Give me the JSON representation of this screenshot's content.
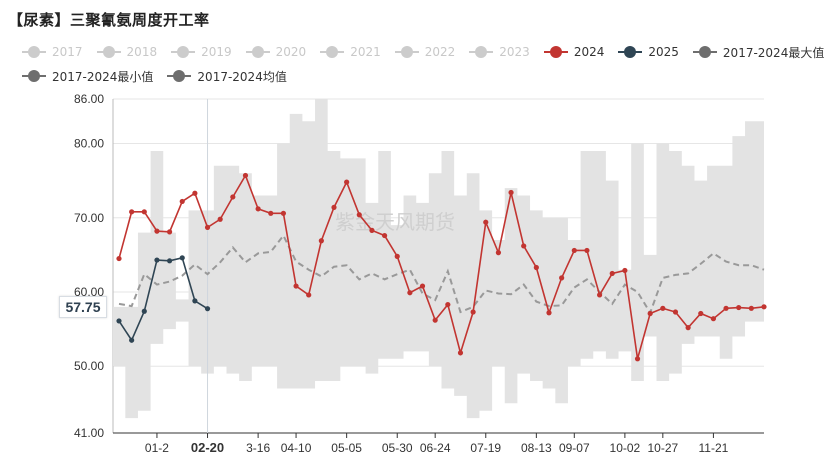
{
  "title": "【尿素】三聚氰氨周度开工率",
  "legend": [
    {
      "label": "2017",
      "color": "#cccccc",
      "active": false,
      "marker": "dot"
    },
    {
      "label": "2018",
      "color": "#cccccc",
      "active": false,
      "marker": "dot"
    },
    {
      "label": "2019",
      "color": "#cccccc",
      "active": false,
      "marker": "dot"
    },
    {
      "label": "2020",
      "color": "#cccccc",
      "active": false,
      "marker": "dot"
    },
    {
      "label": "2021",
      "color": "#cccccc",
      "active": false,
      "marker": "dot"
    },
    {
      "label": "2022",
      "color": "#cccccc",
      "active": false,
      "marker": "dot"
    },
    {
      "label": "2023",
      "color": "#cccccc",
      "active": false,
      "marker": "dot"
    },
    {
      "label": "2024",
      "color": "#c23531",
      "active": true,
      "marker": "dot"
    },
    {
      "label": "2025",
      "color": "#2f4554",
      "active": true,
      "marker": "dot"
    },
    {
      "label": "2017-2024最大值",
      "color": "#6e6e6e",
      "active": true,
      "marker": "dot"
    },
    {
      "label": "2017-2024最小值",
      "color": "#6e6e6e",
      "active": true,
      "marker": "dot"
    },
    {
      "label": "2017-2024均值",
      "color": "#6e6e6e",
      "active": true,
      "marker": "dot"
    }
  ],
  "watermark": "紫金天风期货",
  "pointer_label": "57.75",
  "chart_data": {
    "type": "line",
    "ylim": [
      41.0,
      86.0
    ],
    "y_ticks": [
      "41.00",
      "50.00",
      "60.00",
      "70.00",
      "80.00",
      "86.00"
    ],
    "y_tick_values": [
      41,
      50,
      60,
      70,
      80,
      86
    ],
    "x_count": 52,
    "x_ticks": [
      {
        "index": 3,
        "label": "01-2"
      },
      {
        "index": 7,
        "label": "02-20"
      },
      {
        "index": 11,
        "label": "3-16"
      },
      {
        "index": 14,
        "label": "04-10"
      },
      {
        "index": 18,
        "label": "05-05"
      },
      {
        "index": 22,
        "label": "05-30"
      },
      {
        "index": 25,
        "label": "06-24"
      },
      {
        "index": 29,
        "label": "07-19"
      },
      {
        "index": 33,
        "label": "08-13"
      },
      {
        "index": 36,
        "label": "09-07"
      },
      {
        "index": 40,
        "label": "10-02"
      },
      {
        "index": 43,
        "label": "10-27"
      },
      {
        "index": 47,
        "label": "11-21"
      }
    ],
    "highlight_x_index": 7,
    "band_max": [
      58,
      58,
      68,
      79,
      68,
      59,
      71,
      71,
      77,
      77,
      76,
      73,
      73,
      80,
      84,
      83,
      88,
      79,
      78,
      78,
      72,
      79,
      69,
      73,
      72,
      76,
      79,
      73,
      76,
      71,
      67,
      74,
      73,
      71,
      70,
      70,
      67,
      79,
      79,
      75,
      63,
      80,
      65,
      80,
      79,
      77,
      75,
      77,
      77,
      81,
      83,
      83
    ],
    "band_min": [
      50,
      43,
      44,
      53,
      55,
      56,
      50,
      49,
      50,
      49,
      48,
      50,
      50,
      47,
      47,
      47,
      48,
      48,
      50,
      50,
      49,
      51,
      51,
      52,
      52,
      50,
      47,
      46,
      43,
      44,
      50,
      45,
      49,
      48,
      47,
      45,
      50,
      51,
      52,
      51,
      52,
      48,
      54,
      48,
      49,
      53,
      54,
      54,
      51,
      54,
      56,
      56
    ],
    "series": [
      {
        "name": "2017-2024均值",
        "color": "#999999",
        "dashed": true,
        "values": [
          58.4,
          58.1,
          62.4,
          61.0,
          61.4,
          62.2,
          63.7,
          62.4,
          64.0,
          66.0,
          64.0,
          65.2,
          65.4,
          67.6,
          64.1,
          63.0,
          62.1,
          63.4,
          63.6,
          61.7,
          62.5,
          61.7,
          62.4,
          63.0,
          59.8,
          58.9,
          62.8,
          57.3,
          58.0,
          60.2,
          59.8,
          59.7,
          61.0,
          58.7,
          58.1,
          58.2,
          60.6,
          61.7,
          60.0,
          58.4,
          61.0,
          60.0,
          57.2,
          61.9,
          62.3,
          62.5,
          63.8,
          65.2,
          64.1,
          63.6,
          63.6,
          63.0
        ]
      },
      {
        "name": "2024",
        "color": "#c23531",
        "values": [
          64.5,
          70.8,
          70.8,
          68.2,
          68.1,
          72.2,
          73.3,
          68.7,
          69.8,
          72.8,
          75.7,
          71.2,
          70.6,
          70.6,
          60.8,
          59.6,
          66.9,
          71.4,
          74.8,
          70.4,
          68.3,
          67.6,
          64.8,
          59.9,
          60.8,
          56.2,
          58.3,
          51.8,
          57.3,
          69.4,
          65.3,
          73.4,
          66.2,
          63.3,
          57.2,
          61.9,
          65.6,
          65.6,
          59.6,
          62.5,
          62.9,
          51.0,
          57.1,
          57.8,
          57.3,
          55.2,
          57.1,
          56.4,
          57.8,
          57.9,
          57.8,
          58.0
        ]
      },
      {
        "name": "2025",
        "color": "#2f4554",
        "values": [
          56.1,
          53.5,
          57.4,
          64.3,
          64.2,
          64.6,
          58.8,
          57.75
        ]
      }
    ]
  }
}
